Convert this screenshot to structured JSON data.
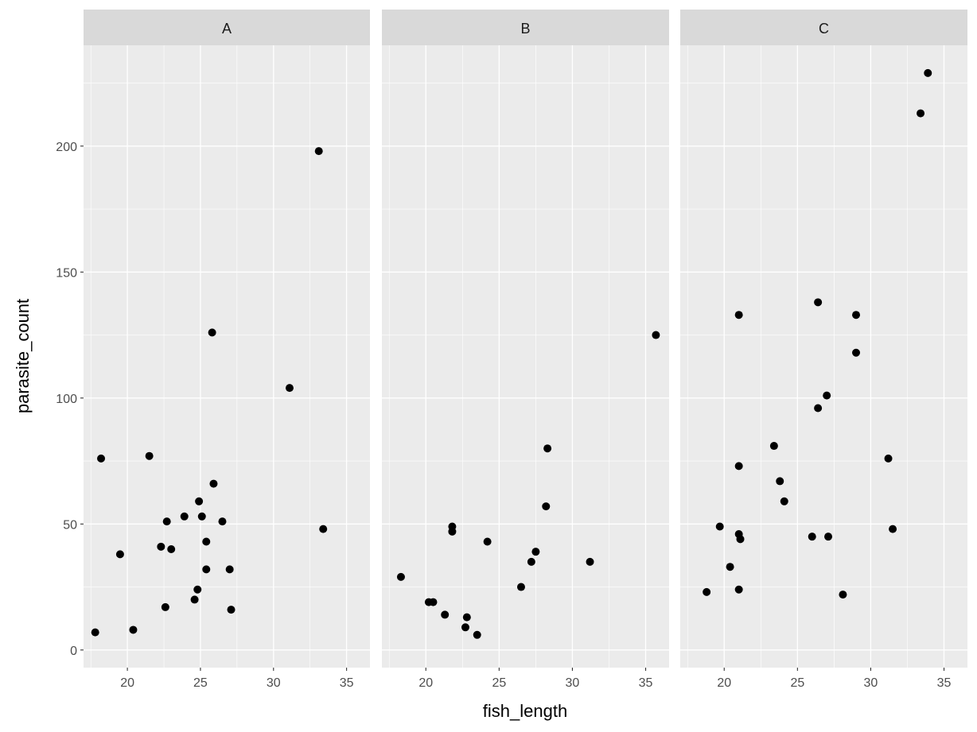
{
  "chart_data": {
    "type": "scatter",
    "xlabel": "fish_length",
    "ylabel": "parasite_count",
    "xlim": [
      17.0,
      36.6
    ],
    "ylim": [
      -7,
      240
    ],
    "x_ticks": [
      20,
      25,
      30,
      35
    ],
    "y_ticks": [
      0,
      50,
      100,
      150,
      200
    ],
    "grid": true,
    "point_color": "#000000",
    "panel_background": "#EBEBEB",
    "strip_background": "#D9D9D9",
    "panels": [
      {
        "label": "A",
        "points": [
          [
            17.8,
            7
          ],
          [
            18.2,
            76
          ],
          [
            19.5,
            38
          ],
          [
            20.4,
            8
          ],
          [
            21.5,
            77
          ],
          [
            22.3,
            41
          ],
          [
            22.6,
            17
          ],
          [
            22.7,
            51
          ],
          [
            23.0,
            40
          ],
          [
            23.9,
            53
          ],
          [
            24.6,
            20
          ],
          [
            24.8,
            24
          ],
          [
            24.9,
            59
          ],
          [
            25.1,
            53
          ],
          [
            25.4,
            43
          ],
          [
            25.4,
            32
          ],
          [
            25.8,
            126
          ],
          [
            25.9,
            66
          ],
          [
            26.5,
            51
          ],
          [
            27.0,
            32
          ],
          [
            27.1,
            16
          ],
          [
            31.1,
            104
          ],
          [
            33.1,
            198
          ],
          [
            33.4,
            48
          ]
        ]
      },
      {
        "label": "B",
        "points": [
          [
            18.3,
            29
          ],
          [
            20.2,
            19
          ],
          [
            20.5,
            19
          ],
          [
            21.3,
            14
          ],
          [
            21.8,
            49
          ],
          [
            21.8,
            47
          ],
          [
            22.7,
            9
          ],
          [
            22.8,
            13
          ],
          [
            23.5,
            6
          ],
          [
            24.2,
            43
          ],
          [
            26.5,
            25
          ],
          [
            27.2,
            35
          ],
          [
            27.5,
            39
          ],
          [
            28.2,
            57
          ],
          [
            28.3,
            80
          ],
          [
            31.2,
            35
          ],
          [
            35.7,
            125
          ]
        ]
      },
      {
        "label": "C",
        "points": [
          [
            18.8,
            23
          ],
          [
            19.7,
            49
          ],
          [
            20.4,
            33
          ],
          [
            21.0,
            133
          ],
          [
            21.0,
            73
          ],
          [
            21.0,
            46
          ],
          [
            21.1,
            44
          ],
          [
            21.0,
            24
          ],
          [
            23.4,
            81
          ],
          [
            23.8,
            67
          ],
          [
            24.1,
            59
          ],
          [
            26.0,
            45
          ],
          [
            26.4,
            138
          ],
          [
            26.4,
            96
          ],
          [
            27.0,
            101
          ],
          [
            27.1,
            45
          ],
          [
            28.1,
            22
          ],
          [
            29.0,
            133
          ],
          [
            29.0,
            118
          ],
          [
            31.2,
            76
          ],
          [
            31.5,
            48
          ],
          [
            33.4,
            213
          ],
          [
            33.9,
            229
          ]
        ]
      }
    ]
  }
}
